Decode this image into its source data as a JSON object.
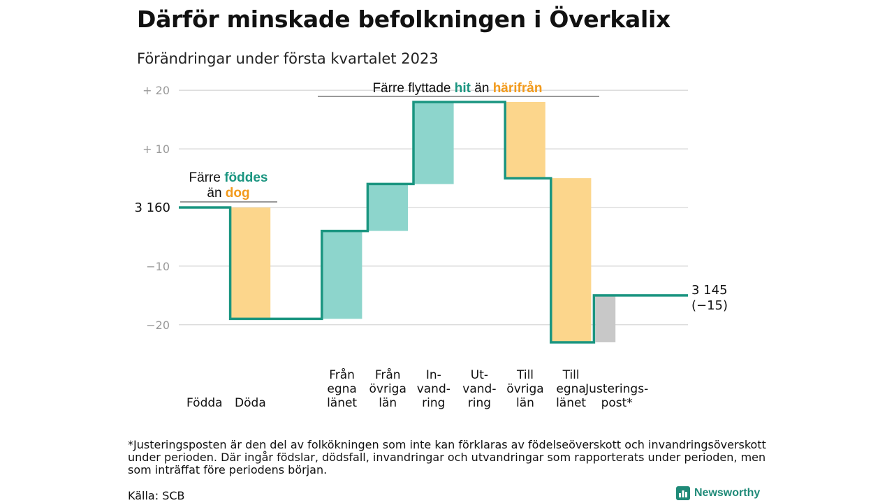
{
  "title": "Därför minskade befolkningen i Överkalix",
  "subtitle": "Förändringar under första kvartalet 2023",
  "chart_data": {
    "type": "waterfall",
    "start_value": 3160,
    "start_label": "3 160",
    "end_value": 3145,
    "end_label_line1": "3 145",
    "end_label_line2": "(−15)",
    "y_ticks": [
      {
        "value": 20,
        "label": "+ 20"
      },
      {
        "value": 10,
        "label": "+ 10"
      },
      {
        "value": -10,
        "label": "−10"
      },
      {
        "value": -20,
        "label": "−20"
      }
    ],
    "ylim": [
      -24,
      21
    ],
    "steps": [
      {
        "category": "Födda",
        "label_lines": [
          "Födda"
        ],
        "change": 0,
        "kind": "in"
      },
      {
        "category": "Döda",
        "label_lines": [
          "Döda"
        ],
        "change": -19,
        "kind": "out"
      },
      {
        "category": "",
        "label_lines": [],
        "change": 0,
        "kind": "none"
      },
      {
        "category": "Från egna länet",
        "label_lines": [
          "Från",
          "egna",
          "länet"
        ],
        "change": 15,
        "kind": "in"
      },
      {
        "category": "Från övriga län",
        "label_lines": [
          "Från",
          "övriga",
          "län"
        ],
        "change": 8,
        "kind": "in"
      },
      {
        "category": "Invandring",
        "label_lines": [
          "In-",
          "vand-",
          "ring"
        ],
        "change": 14,
        "kind": "in"
      },
      {
        "category": "Utvandring",
        "label_lines": [
          "Ut-",
          "vand-",
          "ring"
        ],
        "change": 0,
        "kind": "out"
      },
      {
        "category": "Till övriga län",
        "label_lines": [
          "Till",
          "övriga",
          "län"
        ],
        "change": -13,
        "kind": "out"
      },
      {
        "category": "Till egna länet",
        "label_lines": [
          "Till",
          "egna",
          "länet"
        ],
        "change": -28,
        "kind": "out"
      },
      {
        "category": "Justeringspost*",
        "label_lines": [
          "Justerings-",
          "post*"
        ],
        "change": 8,
        "kind": "adjust"
      }
    ],
    "annotations": [
      {
        "id": "births",
        "line1": [
          {
            "text": "Färre ",
            "color": "#111111"
          },
          {
            "text": "föddes",
            "color": "#1a9580"
          }
        ],
        "line2": [
          {
            "text": "än ",
            "color": "#111111"
          },
          {
            "text": "dog",
            "color": "#f29a1c"
          }
        ]
      },
      {
        "id": "migration",
        "line1": [
          {
            "text": "Färre flyttade ",
            "color": "#111111"
          },
          {
            "text": "hit",
            "color": "#1a9580"
          },
          {
            "text": " än ",
            "color": "#111111"
          },
          {
            "text": "härifrån",
            "color": "#f29a1c"
          }
        ]
      }
    ],
    "colors": {
      "line": "#1a9580",
      "in_fill": "#8dd5cc",
      "out_fill": "#fcd68c",
      "adjust_fill": "#c8c8c8",
      "grid": "#dddddd",
      "tick_text": "#999999"
    },
    "grid": true
  },
  "footnote": "*Justeringsposten är den del av folkökningen som inte kan förklaras av födelseöverskott och invandringsöverskott under perioden. Där ingår födslar, dödsfall, invandringar och utvandringar som rapporterats under perioden, men som inträffat före periodens början.",
  "source": "Källa: SCB",
  "brand": {
    "name": "Newsworthy",
    "icon": "newsworthy-logo-icon"
  }
}
